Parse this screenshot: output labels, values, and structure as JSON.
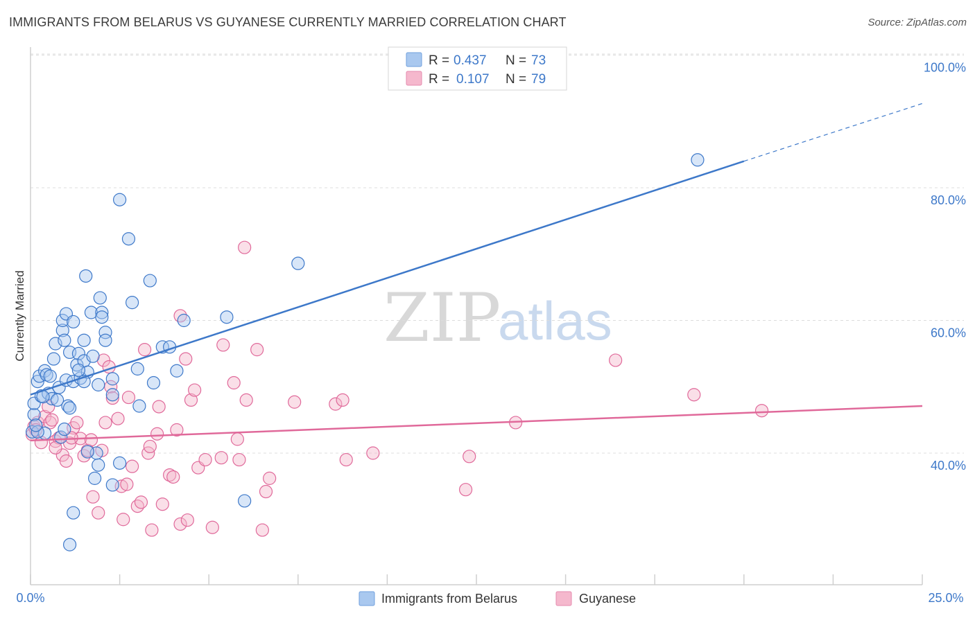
{
  "title": "IMMIGRANTS FROM BELARUS VS GUYANESE CURRENTLY MARRIED CORRELATION CHART",
  "source": "Source: ZipAtlas.com",
  "watermark": {
    "zip": "ZIP",
    "atlas": "atlas"
  },
  "colors": {
    "blue": "#3d78c9",
    "blue_fill": "#a9c8ef",
    "pink": "#e0699a",
    "pink_fill": "#f5b8cd",
    "grid": "#d8d8d8"
  },
  "legend": {
    "rows": [
      {
        "r_label": "R =",
        "r_value": "0.437",
        "n_label": "N =",
        "n_value": "73"
      },
      {
        "r_label": "R =",
        "r_value": "0.107",
        "n_label": "N =",
        "n_value": "79"
      }
    ]
  },
  "chart_data": {
    "type": "scatter",
    "title": "IMMIGRANTS FROM BELARUS VS GUYANESE CURRENTLY MARRIED CORRELATION CHART",
    "xlabel": "",
    "ylabel": "Currently Married",
    "x_tick_labels": [
      "0.0%",
      "25.0%"
    ],
    "y_tick_labels": [
      "100.0%",
      "80.0%",
      "60.0%",
      "40.0%"
    ],
    "y_ticks": [
      100,
      80,
      60,
      40
    ],
    "xlim": [
      0,
      25
    ],
    "ylim": [
      19,
      102
    ],
    "series": [
      {
        "name": "Immigrants from Belarus",
        "color": "#3d78c9",
        "trend": {
          "x0": 0,
          "y0": 48.8,
          "x1": 20,
          "y1": 84.0,
          "dash_to_x": 25,
          "dash_to_y": 92.7
        },
        "points": [
          [
            0.05,
            43.2
          ],
          [
            0.1,
            45.8
          ],
          [
            0.1,
            47.5
          ],
          [
            0.2,
            50.8
          ],
          [
            0.25,
            51.6
          ],
          [
            0.3,
            48.6
          ],
          [
            0.4,
            52.4
          ],
          [
            0.45,
            51.8
          ],
          [
            0.5,
            49.0
          ],
          [
            0.55,
            51.6
          ],
          [
            0.6,
            48.2
          ],
          [
            0.65,
            54.2
          ],
          [
            0.7,
            56.5
          ],
          [
            0.75,
            48.0
          ],
          [
            0.8,
            49.9
          ],
          [
            0.85,
            42.4
          ],
          [
            0.9,
            58.5
          ],
          [
            0.9,
            60.0
          ],
          [
            0.95,
            57.0
          ],
          [
            0.95,
            43.6
          ],
          [
            1.0,
            61.0
          ],
          [
            1.05,
            47.1
          ],
          [
            1.0,
            51.0
          ],
          [
            1.1,
            46.8
          ],
          [
            1.1,
            55.2
          ],
          [
            1.2,
            59.8
          ],
          [
            1.2,
            50.8
          ],
          [
            1.3,
            53.3
          ],
          [
            1.35,
            55.0
          ],
          [
            1.4,
            51.3
          ],
          [
            1.5,
            57.0
          ],
          [
            1.5,
            53.9
          ],
          [
            1.55,
            66.7
          ],
          [
            1.6,
            52.2
          ],
          [
            1.7,
            61.2
          ],
          [
            1.75,
            54.6
          ],
          [
            1.9,
            50.3
          ],
          [
            1.95,
            63.4
          ],
          [
            2.0,
            61.2
          ],
          [
            2.1,
            58.2
          ],
          [
            2.1,
            57.0
          ],
          [
            2.3,
            51.2
          ],
          [
            2.5,
            78.2
          ],
          [
            2.5,
            38.5
          ],
          [
            2.75,
            72.3
          ],
          [
            2.85,
            62.7
          ],
          [
            3.0,
            52.7
          ],
          [
            3.05,
            47.1
          ],
          [
            3.35,
            66.0
          ],
          [
            3.45,
            50.6
          ],
          [
            3.7,
            56.0
          ],
          [
            3.9,
            56.0
          ],
          [
            4.1,
            52.4
          ],
          [
            4.3,
            60.0
          ],
          [
            5.5,
            60.5
          ],
          [
            6.0,
            32.8
          ],
          [
            7.5,
            68.6
          ],
          [
            18.7,
            84.2
          ],
          [
            1.2,
            31.0
          ],
          [
            1.1,
            26.2
          ],
          [
            1.9,
            38.2
          ],
          [
            2.3,
            35.2
          ],
          [
            1.85,
            40.0
          ],
          [
            0.4,
            43.0
          ],
          [
            1.8,
            36.2
          ],
          [
            1.6,
            40.2
          ],
          [
            2.3,
            48.8
          ],
          [
            0.2,
            43.2
          ],
          [
            0.15,
            44.2
          ],
          [
            2.0,
            60.5
          ],
          [
            1.35,
            52.5
          ],
          [
            1.5,
            50.8
          ],
          [
            0.35,
            48.5
          ]
        ]
      },
      {
        "name": "Guyanese",
        "color": "#e0699a",
        "trend": {
          "x0": 0,
          "y0": 41.9,
          "x1": 25,
          "y1": 47.1
        },
        "points": [
          [
            0.05,
            42.8
          ],
          [
            0.1,
            44.0
          ],
          [
            0.2,
            44.6
          ],
          [
            0.3,
            41.6
          ],
          [
            0.4,
            45.5
          ],
          [
            0.5,
            47.0
          ],
          [
            0.55,
            44.6
          ],
          [
            0.6,
            45.0
          ],
          [
            0.7,
            41.8
          ],
          [
            0.8,
            42.3
          ],
          [
            0.9,
            39.7
          ],
          [
            1.0,
            38.8
          ],
          [
            1.1,
            41.5
          ],
          [
            1.2,
            43.8
          ],
          [
            1.3,
            44.6
          ],
          [
            1.4,
            42.2
          ],
          [
            1.5,
            39.6
          ],
          [
            1.6,
            40.4
          ],
          [
            1.7,
            42.0
          ],
          [
            1.75,
            33.4
          ],
          [
            1.9,
            31.0
          ],
          [
            2.0,
            40.4
          ],
          [
            2.05,
            54.0
          ],
          [
            2.1,
            44.6
          ],
          [
            2.2,
            53.0
          ],
          [
            2.25,
            50.0
          ],
          [
            2.3,
            48.3
          ],
          [
            2.45,
            45.2
          ],
          [
            2.55,
            35.0
          ],
          [
            2.6,
            30.0
          ],
          [
            2.7,
            35.3
          ],
          [
            2.75,
            48.4
          ],
          [
            2.85,
            38.0
          ],
          [
            3.0,
            32.0
          ],
          [
            3.1,
            32.6
          ],
          [
            3.2,
            55.6
          ],
          [
            3.3,
            40.0
          ],
          [
            3.35,
            41.0
          ],
          [
            3.4,
            28.4
          ],
          [
            3.55,
            42.9
          ],
          [
            3.6,
            47.0
          ],
          [
            3.7,
            32.3
          ],
          [
            3.9,
            36.7
          ],
          [
            4.0,
            36.4
          ],
          [
            4.1,
            43.5
          ],
          [
            4.2,
            29.3
          ],
          [
            4.2,
            60.7
          ],
          [
            4.35,
            54.2
          ],
          [
            4.4,
            29.9
          ],
          [
            4.5,
            48.0
          ],
          [
            4.6,
            49.5
          ],
          [
            4.7,
            37.8
          ],
          [
            4.9,
            39.0
          ],
          [
            5.1,
            28.8
          ],
          [
            5.35,
            39.3
          ],
          [
            5.4,
            56.3
          ],
          [
            5.7,
            50.6
          ],
          [
            5.8,
            42.1
          ],
          [
            5.85,
            39.0
          ],
          [
            6.0,
            71.0
          ],
          [
            6.05,
            48.0
          ],
          [
            6.35,
            55.6
          ],
          [
            6.5,
            28.4
          ],
          [
            6.6,
            34.2
          ],
          [
            6.7,
            36.2
          ],
          [
            7.4,
            47.7
          ],
          [
            8.55,
            47.4
          ],
          [
            8.75,
            48.0
          ],
          [
            8.85,
            39.0
          ],
          [
            9.6,
            40.0
          ],
          [
            12.2,
            34.5
          ],
          [
            12.3,
            39.5
          ],
          [
            13.6,
            44.6
          ],
          [
            16.4,
            54.0
          ],
          [
            18.6,
            48.8
          ],
          [
            20.5,
            46.4
          ],
          [
            0.15,
            43.5
          ],
          [
            1.15,
            42.3
          ],
          [
            0.7,
            40.8
          ]
        ]
      }
    ]
  },
  "bottom_legend": [
    {
      "label": "Immigrants from Belarus"
    },
    {
      "label": "Guyanese"
    }
  ]
}
